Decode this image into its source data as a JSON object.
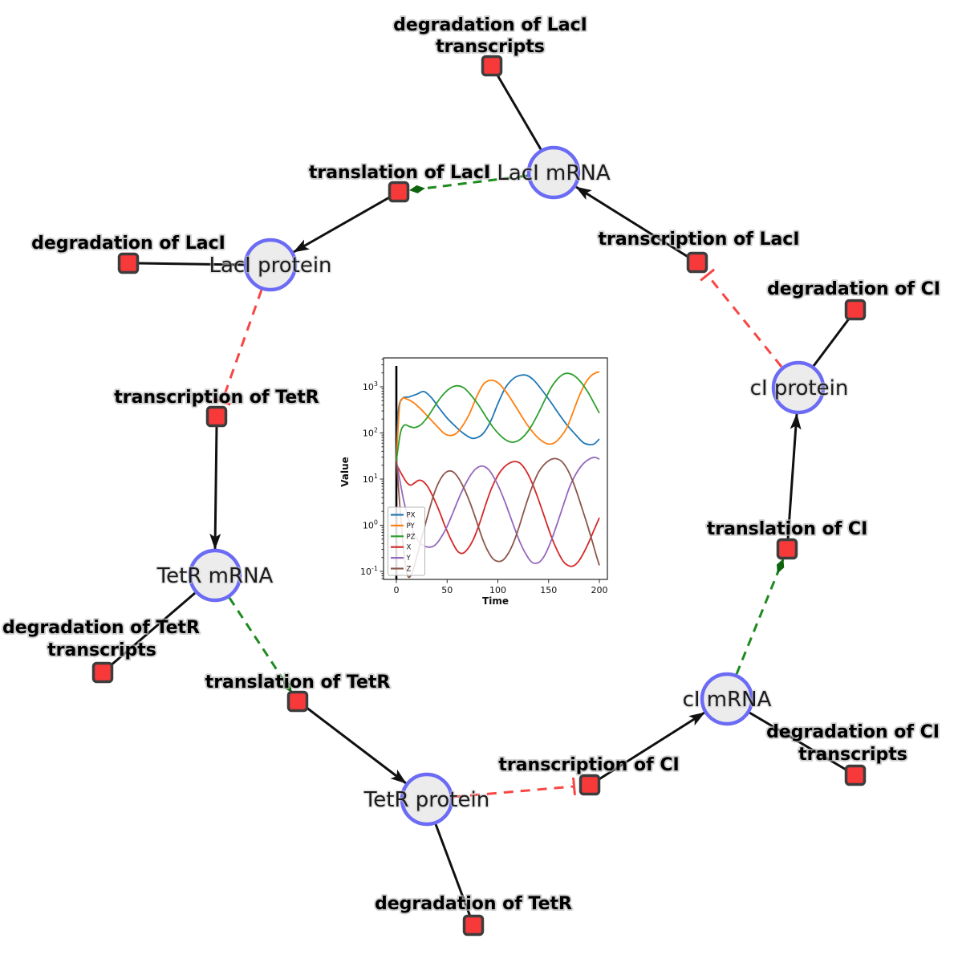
{
  "figure": {
    "title": "repressilator gene regulatory network"
  },
  "nodes": {
    "laci_mrna": "LacI mRNA",
    "laci_protein": "LacI protein",
    "tetr_mrna": "TetR mRNA",
    "tetr_protein": "TetR protein",
    "ci_mrna": "cI mRNA",
    "ci_protein": "cI protein"
  },
  "reactions": {
    "deg_laci_tr_line1": "degradation of LacI",
    "deg_laci_tr_line2": "transcripts",
    "transl_laci": "translation of LacI",
    "deg_laci": "degradation of LacI",
    "transcr_laci": "transcription of LacI",
    "deg_ci": "degradation of CI",
    "transcr_tetr": "transcription of TetR",
    "deg_tetr_tr_line1": "degradation of TetR",
    "deg_tetr_tr_line2": "transcripts",
    "transl_tetr": "translation of TetR",
    "deg_tetr": "degradation of TetR",
    "transcr_ci": "transcription of CI",
    "deg_ci_tr_line1": "degradation of CI",
    "deg_ci_tr_line2": "transcripts",
    "transl_ci": "translation of CI"
  },
  "edge_colors": {
    "reaction_edge": "#111111",
    "modifier_edge": "#1f8a1f",
    "inhibition_edge": "#f84545"
  },
  "node_colors": {
    "species_fill": "#ececec",
    "species_border": "#6b6bf5",
    "reaction_fill": "#f73939",
    "reaction_border": "#3d3d3d"
  },
  "chart_data": {
    "type": "line",
    "title": "",
    "xlabel": "Time",
    "ylabel": "Value",
    "yscale": "log",
    "xlim": [
      -12,
      208
    ],
    "ylim_log_exponents": [
      -1.17,
      3.63
    ],
    "x_ticks": [
      0,
      50,
      100,
      150,
      200
    ],
    "y_tick_exponents": [
      -1,
      0,
      1,
      2,
      3
    ],
    "grid": false,
    "legend_position": "lower left",
    "annotations": {
      "vline_x": 0
    },
    "series": [
      {
        "name": "PX",
        "color": "#1f77b4",
        "points": [
          [
            0,
            25
          ],
          [
            2,
            300
          ],
          [
            6,
            560
          ],
          [
            12,
            600
          ],
          [
            20,
            690
          ],
          [
            27,
            790
          ],
          [
            34,
            600
          ],
          [
            42,
            350
          ],
          [
            50,
            210
          ],
          [
            58,
            140
          ],
          [
            66,
            98
          ],
          [
            74,
            77
          ],
          [
            80,
            80
          ],
          [
            86,
            100
          ],
          [
            93,
            180
          ],
          [
            100,
            430
          ],
          [
            108,
            1000
          ],
          [
            116,
            1550
          ],
          [
            123,
            1790
          ],
          [
            129,
            1750
          ],
          [
            136,
            1350
          ],
          [
            144,
            820
          ],
          [
            152,
            470
          ],
          [
            160,
            260
          ],
          [
            168,
            150
          ],
          [
            176,
            95
          ],
          [
            184,
            62
          ],
          [
            190,
            56
          ],
          [
            195,
            58
          ],
          [
            200,
            74
          ]
        ]
      },
      {
        "name": "PY",
        "color": "#ff7f0e",
        "points": [
          [
            0,
            25
          ],
          [
            3,
            350
          ],
          [
            6,
            560
          ],
          [
            10,
            545
          ],
          [
            16,
            470
          ],
          [
            24,
            330
          ],
          [
            32,
            215
          ],
          [
            40,
            140
          ],
          [
            47,
            98
          ],
          [
            53,
            88
          ],
          [
            59,
            98
          ],
          [
            65,
            140
          ],
          [
            72,
            260
          ],
          [
            79,
            600
          ],
          [
            85,
            1080
          ],
          [
            90,
            1340
          ],
          [
            95,
            1380
          ],
          [
            101,
            1180
          ],
          [
            108,
            780
          ],
          [
            115,
            460
          ],
          [
            122,
            260
          ],
          [
            129,
            150
          ],
          [
            136,
            95
          ],
          [
            143,
            68
          ],
          [
            149,
            58
          ],
          [
            155,
            60
          ],
          [
            161,
            78
          ],
          [
            168,
            130
          ],
          [
            174,
            280
          ],
          [
            180,
            620
          ],
          [
            186,
            1180
          ],
          [
            192,
            1750
          ],
          [
            197,
            2030
          ],
          [
            200,
            2100
          ]
        ]
      },
      {
        "name": "PZ",
        "color": "#2ca02c",
        "points": [
          [
            0,
            25
          ],
          [
            4,
            100
          ],
          [
            8,
            148
          ],
          [
            13,
            138
          ],
          [
            18,
            131
          ],
          [
            24,
            150
          ],
          [
            30,
            210
          ],
          [
            36,
            330
          ],
          [
            43,
            560
          ],
          [
            50,
            830
          ],
          [
            56,
            1010
          ],
          [
            61,
            1050
          ],
          [
            67,
            930
          ],
          [
            74,
            640
          ],
          [
            81,
            400
          ],
          [
            88,
            230
          ],
          [
            95,
            135
          ],
          [
            102,
            90
          ],
          [
            109,
            68
          ],
          [
            115,
            63
          ],
          [
            121,
            70
          ],
          [
            127,
            92
          ],
          [
            133,
            140
          ],
          [
            140,
            270
          ],
          [
            147,
            560
          ],
          [
            153,
            1000
          ],
          [
            159,
            1500
          ],
          [
            164,
            1850
          ],
          [
            169,
            1960
          ],
          [
            175,
            1750
          ],
          [
            182,
            1250
          ],
          [
            189,
            750
          ],
          [
            195,
            430
          ],
          [
            200,
            270
          ]
        ]
      },
      {
        "name": "X",
        "color": "#d62728",
        "points": [
          [
            0,
            21
          ],
          [
            5,
            13
          ],
          [
            10,
            8.6
          ],
          [
            14,
            7.4
          ],
          [
            18,
            8.3
          ],
          [
            22,
            9.4
          ],
          [
            26,
            9
          ],
          [
            31,
            6.8
          ],
          [
            36,
            4.2
          ],
          [
            42,
            2.1
          ],
          [
            48,
            0.95
          ],
          [
            54,
            0.48
          ],
          [
            60,
            0.28
          ],
          [
            65,
            0.245
          ],
          [
            70,
            0.3
          ],
          [
            76,
            0.5
          ],
          [
            82,
            1.1
          ],
          [
            88,
            2.8
          ],
          [
            94,
            6.5
          ],
          [
            100,
            12
          ],
          [
            106,
            18
          ],
          [
            112,
            22.5
          ],
          [
            117,
            24
          ],
          [
            122,
            22
          ],
          [
            128,
            15
          ],
          [
            134,
            8
          ],
          [
            140,
            3.6
          ],
          [
            146,
            1.5
          ],
          [
            152,
            0.62
          ],
          [
            158,
            0.3
          ],
          [
            164,
            0.17
          ],
          [
            169,
            0.135
          ],
          [
            174,
            0.13
          ],
          [
            179,
            0.16
          ],
          [
            184,
            0.24
          ],
          [
            189,
            0.4
          ],
          [
            194,
            0.72
          ],
          [
            200,
            1.45
          ]
        ]
      },
      {
        "name": "Y",
        "color": "#9467bd",
        "points": [
          [
            0,
            25
          ],
          [
            4,
            8
          ],
          [
            8,
            2.9
          ],
          [
            13,
            1.2
          ],
          [
            18,
            0.62
          ],
          [
            23,
            0.42
          ],
          [
            28,
            0.35
          ],
          [
            33,
            0.335
          ],
          [
            38,
            0.37
          ],
          [
            43,
            0.5
          ],
          [
            49,
            0.85
          ],
          [
            55,
            1.7
          ],
          [
            61,
            3.6
          ],
          [
            67,
            7
          ],
          [
            73,
            12
          ],
          [
            78,
            16.5
          ],
          [
            83,
            19
          ],
          [
            87,
            18.5
          ],
          [
            92,
            15
          ],
          [
            97,
            10
          ],
          [
            102,
            6
          ],
          [
            107,
            3.2
          ],
          [
            112,
            1.6
          ],
          [
            117,
            0.8
          ],
          [
            122,
            0.42
          ],
          [
            127,
            0.25
          ],
          [
            132,
            0.17
          ],
          [
            136,
            0.15
          ],
          [
            141,
            0.16
          ],
          [
            146,
            0.22
          ],
          [
            151,
            0.38
          ],
          [
            156,
            0.75
          ],
          [
            161,
            1.6
          ],
          [
            166,
            3.4
          ],
          [
            171,
            7
          ],
          [
            177,
            13
          ],
          [
            182,
            19
          ],
          [
            187,
            24.5
          ],
          [
            192,
            28.5
          ],
          [
            196,
            29.5
          ],
          [
            200,
            27
          ]
        ]
      },
      {
        "name": "Z",
        "color": "#8c564b",
        "points": [
          [
            0,
            25
          ],
          [
            2,
            7
          ],
          [
            4,
            1.8
          ],
          [
            6,
            0.55
          ],
          [
            8,
            0.2
          ],
          [
            10,
            0.1
          ],
          [
            12,
            0.075
          ],
          [
            14,
            0.08
          ],
          [
            16,
            0.1
          ],
          [
            18,
            0.14
          ],
          [
            21,
            0.25
          ],
          [
            24,
            0.45
          ],
          [
            28,
            0.95
          ],
          [
            32,
            2
          ],
          [
            36,
            4
          ],
          [
            40,
            7
          ],
          [
            44,
            10.5
          ],
          [
            48,
            13.5
          ],
          [
            52,
            15
          ],
          [
            56,
            14.3
          ],
          [
            60,
            11.5
          ],
          [
            65,
            7.5
          ],
          [
            70,
            4.3
          ],
          [
            75,
            2.2
          ],
          [
            80,
            1.05
          ],
          [
            85,
            0.5
          ],
          [
            90,
            0.28
          ],
          [
            95,
            0.19
          ],
          [
            100,
            0.165
          ],
          [
            105,
            0.175
          ],
          [
            110,
            0.24
          ],
          [
            115,
            0.4
          ],
          [
            120,
            0.8
          ],
          [
            125,
            1.8
          ],
          [
            130,
            4
          ],
          [
            135,
            8
          ],
          [
            140,
            14
          ],
          [
            145,
            20
          ],
          [
            150,
            25
          ],
          [
            154,
            27.5
          ],
          [
            158,
            27.5
          ],
          [
            163,
            24
          ],
          [
            168,
            17
          ],
          [
            173,
            10
          ],
          [
            178,
            5
          ],
          [
            183,
            2.3
          ],
          [
            188,
            1.05
          ],
          [
            193,
            0.45
          ],
          [
            197,
            0.22
          ],
          [
            200,
            0.135
          ]
        ]
      }
    ]
  }
}
